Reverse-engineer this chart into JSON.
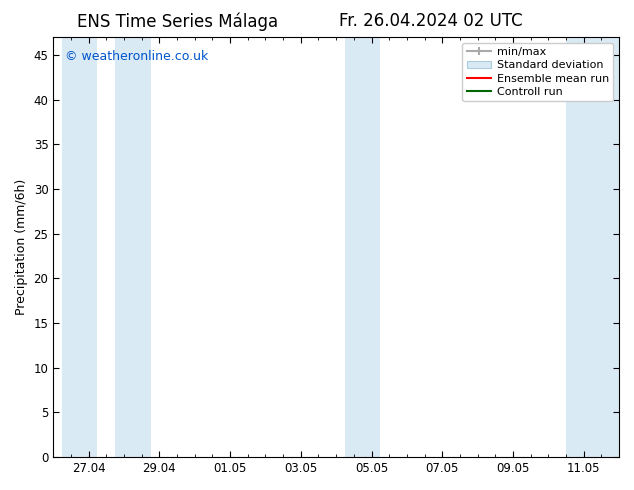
{
  "title_left": "ENS Time Series Málaga",
  "title_right": "Fr. 26.04.2024 02 UTC",
  "ylabel": "Precipitation (mm/6h)",
  "watermark": "© weatheronline.co.uk",
  "watermark_color": "#0055cc",
  "ylim": [
    0,
    47
  ],
  "yticks": [
    0,
    5,
    10,
    15,
    20,
    25,
    30,
    35,
    40,
    45
  ],
  "background_color": "#ffffff",
  "plot_bg_color": "#ffffff",
  "minmax_color": "#aaaaaa",
  "light_blue_fill": "#daeaf5",
  "ensemble_mean_color": "#ff0000",
  "control_run_color": "#006600",
  "x_tick_labels": [
    "27.04",
    "29.04",
    "01.05",
    "03.05",
    "05.05",
    "07.05",
    "09.05",
    "11.05"
  ],
  "title_fontsize": 12,
  "axis_label_fontsize": 9,
  "tick_fontsize": 8.5,
  "legend_fontsize": 8,
  "watermark_fontsize": 9,
  "band_regions": [
    [
      0.25,
      1.25
    ],
    [
      1.75,
      2.75
    ],
    [
      8.25,
      9.25
    ],
    [
      14.5,
      16.0
    ]
  ],
  "xmin": 0.0,
  "xmax": 16.0,
  "x_tick_positions": [
    1.0,
    3.0,
    5.0,
    7.0,
    9.0,
    11.0,
    13.0,
    15.0
  ]
}
